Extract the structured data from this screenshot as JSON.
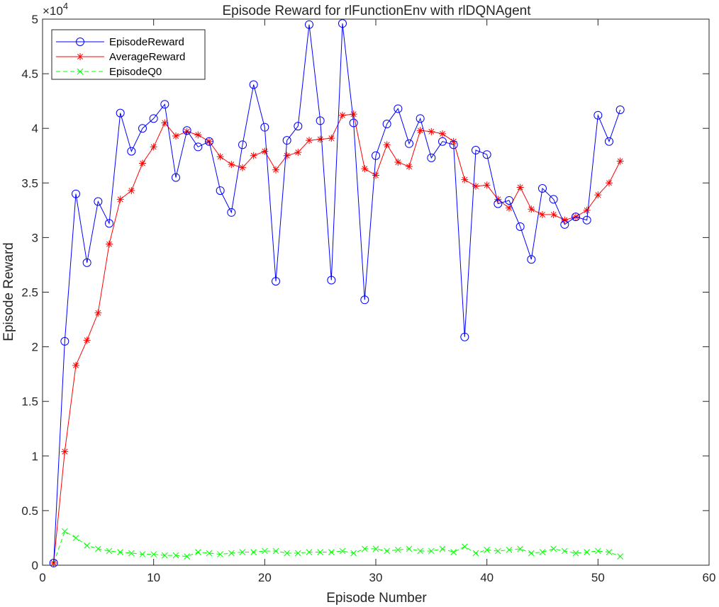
{
  "chart_data": {
    "type": "line",
    "title": "Episode Reward for rlFunctionEnv with rlDQNAgent",
    "xlabel": "Episode Number",
    "ylabel": "Episode Reward",
    "xlim": [
      0,
      60
    ],
    "ylim": [
      0,
      50000
    ],
    "x_ticks": [
      0,
      10,
      20,
      30,
      40,
      50,
      60
    ],
    "x_tick_labels": [
      "0",
      "10",
      "20",
      "30",
      "40",
      "50",
      "60"
    ],
    "y_ticks": [
      0,
      5000,
      10000,
      15000,
      20000,
      25000,
      30000,
      35000,
      40000,
      45000,
      50000
    ],
    "y_tick_labels": [
      "0",
      "0.5",
      "1",
      "1.5",
      "2",
      "2.5",
      "3",
      "3.5",
      "4",
      "4.5",
      "5"
    ],
    "y_exponent_label": "×10",
    "y_exponent_power": "4",
    "grid": false,
    "legend_position": "top-left",
    "x": [
      1,
      2,
      3,
      4,
      5,
      6,
      7,
      8,
      9,
      10,
      11,
      12,
      13,
      14,
      15,
      16,
      17,
      18,
      19,
      20,
      21,
      22,
      23,
      24,
      25,
      26,
      27,
      28,
      29,
      30,
      31,
      32,
      33,
      34,
      35,
      36,
      37,
      38,
      39,
      40,
      41,
      42,
      43,
      44,
      45,
      46,
      47,
      48,
      49,
      50,
      51,
      52
    ],
    "series": [
      {
        "name": "EpisodeReward",
        "color": "#0000ff",
        "marker": "circle",
        "line": "solid",
        "values": [
          200,
          20500,
          34000,
          27700,
          33300,
          31300,
          41400,
          37900,
          40000,
          40900,
          42200,
          35500,
          39800,
          38300,
          38800,
          34300,
          32300,
          38500,
          44000,
          40100,
          26000,
          38900,
          40200,
          49500,
          40700,
          26100,
          49600,
          40500,
          24300,
          37500,
          40400,
          41800,
          38600,
          40900,
          37300,
          38800,
          38500,
          20900,
          38000,
          37600,
          33100,
          33400,
          31000,
          28000,
          34500,
          33500,
          31200,
          31900,
          31600,
          41200,
          38800,
          41700
        ]
      },
      {
        "name": "AverageReward",
        "color": "#ff0000",
        "marker": "asterisk",
        "line": "solid",
        "values": [
          200,
          10400,
          18300,
          20600,
          23100,
          29400,
          33500,
          34300,
          36800,
          38300,
          40500,
          39300,
          39700,
          39400,
          38800,
          37400,
          36700,
          36400,
          37500,
          37900,
          36200,
          37500,
          37800,
          38900,
          39000,
          39100,
          41200,
          41300,
          36300,
          35700,
          38500,
          36900,
          36500,
          39800,
          39700,
          39500,
          38800,
          35300,
          34700,
          34800,
          33500,
          32700,
          34600,
          32600,
          32100,
          32100,
          31600,
          31900,
          32500,
          33900,
          35000,
          37000
        ]
      },
      {
        "name": "EpisodeQ0",
        "color": "#00ff00",
        "marker": "x",
        "line": "dashed",
        "values": [
          200,
          3100,
          2500,
          1800,
          1500,
          1300,
          1200,
          1100,
          1000,
          1000,
          900,
          900,
          800,
          1200,
          1100,
          1000,
          1100,
          1200,
          1200,
          1300,
          1300,
          1100,
          1100,
          1200,
          1200,
          1200,
          1300,
          1100,
          1500,
          1500,
          1300,
          1400,
          1500,
          1300,
          1300,
          1500,
          1200,
          1700,
          1100,
          1400,
          1300,
          1400,
          1500,
          1100,
          1200,
          1500,
          1300,
          1100,
          1200,
          1300,
          1200,
          800
        ]
      }
    ]
  }
}
